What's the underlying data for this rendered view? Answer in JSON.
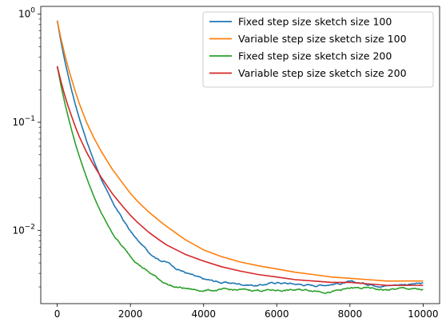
{
  "chart_data": {
    "type": "line",
    "title": "",
    "xlabel": "",
    "ylabel": "",
    "xlim": [
      -450,
      10450
    ],
    "ylim": [
      0.0021,
      1.18
    ],
    "yscale": "log",
    "legend_position": "upper-right",
    "x_ticks": [
      {
        "value": 0,
        "label": "0"
      },
      {
        "value": 2000,
        "label": "2000"
      },
      {
        "value": 4000,
        "label": "4000"
      },
      {
        "value": 6000,
        "label": "6000"
      },
      {
        "value": 8000,
        "label": "8000"
      },
      {
        "value": 10000,
        "label": "10000"
      }
    ],
    "y_ticks": [
      {
        "value": 1,
        "base": "10",
        "exp": "0"
      },
      {
        "value": 0.1,
        "base": "10",
        "exp": "−1"
      },
      {
        "value": 0.01,
        "base": "10",
        "exp": "−2"
      }
    ],
    "series": [
      {
        "name": "Fixed step size sketch size 100",
        "color": "#1f77b4",
        "noisy": true,
        "x": [
          0,
          100,
          200,
          300,
          400,
          500,
          600,
          800,
          1000,
          1200,
          1500,
          1800,
          2000,
          2200,
          2500,
          2800,
          3000,
          3200,
          3500,
          3800,
          4000,
          4500,
          5000,
          5500,
          6000,
          6500,
          7000,
          7500,
          8000,
          8500,
          9000,
          9500,
          10000
        ],
        "y": [
          0.87,
          0.56,
          0.38,
          0.27,
          0.195,
          0.145,
          0.11,
          0.068,
          0.044,
          0.03,
          0.0185,
          0.0125,
          0.0098,
          0.008,
          0.0063,
          0.0054,
          0.0051,
          0.0046,
          0.0041,
          0.0037,
          0.0035,
          0.0033,
          0.0032,
          0.0031,
          0.0033,
          0.0032,
          0.0031,
          0.0032,
          0.0033,
          0.0032,
          0.0031,
          0.0032,
          0.0032
        ]
      },
      {
        "name": "Variable step size sketch size 100",
        "color": "#ff7f0e",
        "noisy": false,
        "x": [
          0,
          100,
          200,
          300,
          400,
          500,
          600,
          800,
          1000,
          1200,
          1500,
          1800,
          2000,
          2200,
          2500,
          2800,
          3000,
          3500,
          4000,
          4500,
          5000,
          5500,
          6000,
          6500,
          7000,
          7500,
          8000,
          8500,
          9000,
          9500,
          10000
        ],
        "y": [
          0.87,
          0.6,
          0.43,
          0.32,
          0.245,
          0.19,
          0.15,
          0.1,
          0.072,
          0.054,
          0.037,
          0.027,
          0.022,
          0.0185,
          0.0148,
          0.0122,
          0.0108,
          0.0082,
          0.0066,
          0.0057,
          0.0051,
          0.0047,
          0.0044,
          0.0041,
          0.0039,
          0.0037,
          0.0036,
          0.0035,
          0.0034,
          0.0034,
          0.0034
        ]
      },
      {
        "name": "Fixed step size sketch size 200",
        "color": "#2ca02c",
        "noisy": true,
        "x": [
          0,
          100,
          200,
          300,
          400,
          500,
          600,
          800,
          1000,
          1200,
          1500,
          1800,
          2000,
          2200,
          2500,
          2800,
          3000,
          3200,
          3500,
          3800,
          4000,
          4500,
          5000,
          5500,
          6000,
          6500,
          7000,
          7500,
          8000,
          8500,
          9000,
          9500,
          10000
        ],
        "y": [
          0.33,
          0.22,
          0.155,
          0.112,
          0.083,
          0.063,
          0.049,
          0.031,
          0.0205,
          0.0145,
          0.0095,
          0.0069,
          0.0058,
          0.005,
          0.0041,
          0.0035,
          0.0032,
          0.003,
          0.0029,
          0.0028,
          0.0028,
          0.0028,
          0.0028,
          0.0028,
          0.0028,
          0.0028,
          0.0028,
          0.0027,
          0.0029,
          0.0029,
          0.0028,
          0.0029,
          0.0028
        ]
      },
      {
        "name": "Variable step size sketch size 200",
        "color": "#d62728",
        "noisy": false,
        "x": [
          0,
          100,
          200,
          300,
          400,
          500,
          600,
          800,
          1000,
          1200,
          1500,
          1800,
          2000,
          2200,
          2500,
          2800,
          3000,
          3500,
          4000,
          4500,
          5000,
          5500,
          6000,
          6500,
          7000,
          7500,
          8000,
          8500,
          9000,
          9500,
          10000
        ],
        "y": [
          0.33,
          0.24,
          0.18,
          0.14,
          0.112,
          0.09,
          0.074,
          0.053,
          0.04,
          0.031,
          0.022,
          0.0165,
          0.0138,
          0.0118,
          0.0096,
          0.0081,
          0.0073,
          0.006,
          0.0052,
          0.0046,
          0.0042,
          0.0039,
          0.0037,
          0.0035,
          0.0034,
          0.0033,
          0.0033,
          0.0032,
          0.0031,
          0.0031,
          0.0031
        ]
      }
    ]
  }
}
